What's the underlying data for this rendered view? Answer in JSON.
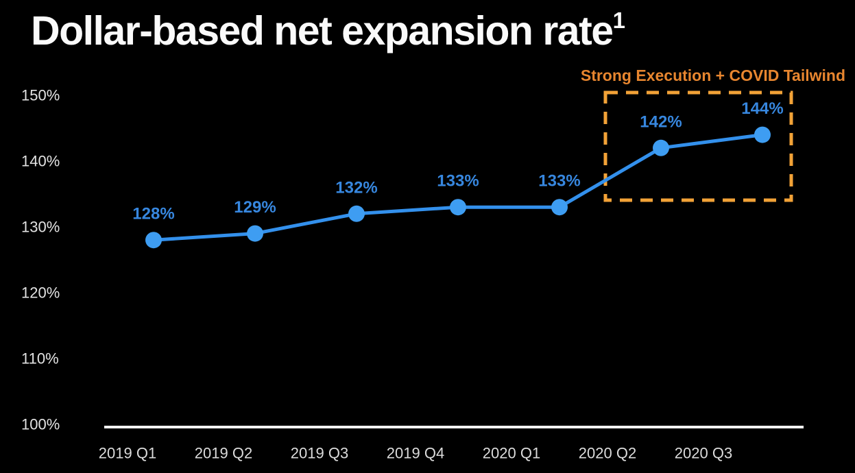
{
  "title": {
    "text": "Dollar-based net expansion rate",
    "footnote_marker": "1"
  },
  "annotation": {
    "text": "Strong Execution + COVID Tailwind",
    "text_color": "#E8862F",
    "box_color": "#F2A237"
  },
  "chart_data": {
    "type": "line",
    "title": "Dollar-based net expansion rate",
    "categories": [
      "2019 Q1",
      "2019 Q2",
      "2019 Q3",
      "2019 Q4",
      "2020 Q1",
      "2020 Q2",
      "2020 Q3"
    ],
    "values": [
      128,
      129,
      132,
      133,
      133,
      142,
      144
    ],
    "data_labels": [
      "128%",
      "129%",
      "132%",
      "133%",
      "133%",
      "142%",
      "144%"
    ],
    "y_ticks": [
      "150%",
      "140%",
      "130%",
      "120%",
      "110%",
      "100%"
    ],
    "y_tick_values": [
      150,
      140,
      130,
      120,
      110,
      100
    ],
    "ylim": [
      100,
      150
    ],
    "xlabel": "",
    "ylabel": "",
    "grid": false,
    "legend": false,
    "line_color": "#3390EC",
    "point_color": "#3E9DF2",
    "label_color": "#3787DF",
    "axis_color": "#F2F2F2",
    "tick_color": "#DCDCDC",
    "highlight": {
      "label": "Strong Execution + COVID Tailwind",
      "categories": [
        "2020 Q2",
        "2020 Q3"
      ]
    }
  }
}
